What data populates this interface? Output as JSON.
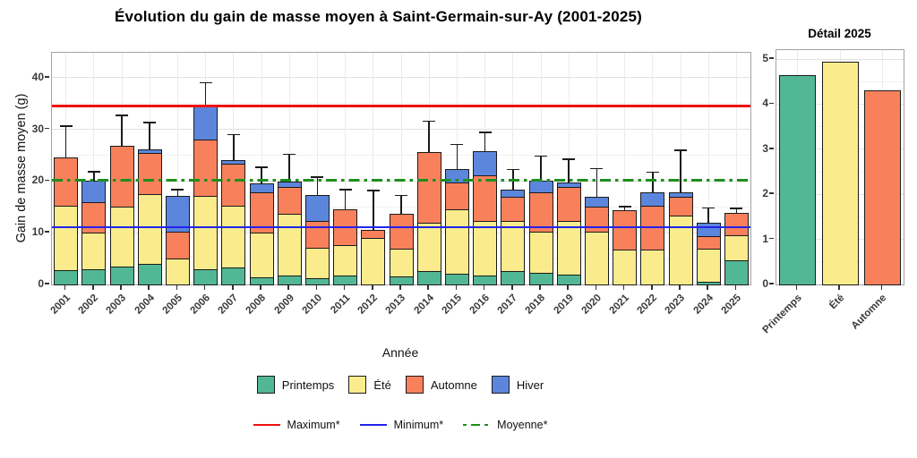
{
  "chart_data": [
    {
      "type": "bar",
      "stacked": true,
      "title": "Évolution du gain de masse moyen à Saint-Germain-sur-Ay (2001-2025)",
      "xlabel": "Année",
      "ylabel": "Gain de masse moyen (g)",
      "ylim": [
        0,
        44.8
      ],
      "yticks": [
        0,
        10,
        20,
        30,
        40
      ],
      "grid": true,
      "legend_position": "bottom",
      "categories": [
        "2001",
        "2002",
        "2003",
        "2004",
        "2005",
        "2006",
        "2007",
        "2008",
        "2009",
        "2010",
        "2011",
        "2012",
        "2013",
        "2014",
        "2015",
        "2016",
        "2017",
        "2018",
        "2019",
        "2020",
        "2021",
        "2022",
        "2023",
        "2024",
        "2025"
      ],
      "series": [
        {
          "name": "Printemps",
          "color": "#52B794",
          "values": [
            2.8,
            3.0,
            3.5,
            4.0,
            0,
            3.0,
            3.3,
            1.4,
            1.8,
            1.2,
            1.7,
            0,
            1.5,
            2.6,
            2.1,
            1.7,
            2.6,
            2.3,
            1.9,
            0,
            0,
            0,
            0,
            0.5,
            4.65
          ]
        },
        {
          "name": "Été",
          "color": "#FAEC8C",
          "values": [
            12.5,
            7.0,
            11.5,
            13.5,
            5.0,
            14.2,
            12.0,
            8.6,
            11.9,
            5.9,
            5.9,
            9.0,
            5.5,
            9.3,
            12.5,
            10.5,
            9.7,
            7.9,
            10.4,
            10.2,
            6.7,
            6.7,
            13.4,
            6.5,
            4.95
          ]
        },
        {
          "name": "Automne",
          "color": "#F8815C",
          "values": [
            9.2,
            6.0,
            11.8,
            8.0,
            5.2,
            10.9,
            8.0,
            7.9,
            5.2,
            5.1,
            7.0,
            1.5,
            6.7,
            13.7,
            5.1,
            8.9,
            4.7,
            7.6,
            6.5,
            4.9,
            7.7,
            8.6,
            3.6,
            2.3,
            4.3
          ]
        },
        {
          "name": "Hiver",
          "color": "#5C86DC",
          "values": [
            0,
            4.0,
            0,
            0.7,
            7.0,
            6.4,
            0.7,
            1.6,
            1.0,
            5.1,
            0,
            0,
            0,
            0,
            2.7,
            4.6,
            1.3,
            2.3,
            0.9,
            1.8,
            0,
            2.5,
            0.8,
            2.7,
            0
          ]
        }
      ],
      "error_bar_tops": [
        30.6,
        21.8,
        32.7,
        31.3,
        18.3,
        39.0,
        29.0,
        22.7,
        25.2,
        20.8,
        18.3,
        18.2,
        17.2,
        31.6,
        27.1,
        29.4,
        22.2,
        24.8,
        24.2,
        22.4,
        15.0,
        21.7,
        25.9,
        14.8,
        14.7
      ],
      "ref_lines": [
        {
          "label": "Maximum*",
          "value": 34.5,
          "color": "#EE1111",
          "style": "solid"
        },
        {
          "label": "Minimum*",
          "value": 11.1,
          "color": "#2222EE",
          "style": "solid"
        },
        {
          "label": "Moyenne*",
          "value": 20.2,
          "color": "#1E8E1E",
          "style": "dashdot"
        }
      ]
    },
    {
      "type": "bar",
      "stacked": false,
      "title": "Détail 2025",
      "xlabel": "",
      "ylabel": "",
      "ylim": [
        0,
        5.2
      ],
      "yticks": [
        0,
        1,
        2,
        3,
        4,
        5
      ],
      "grid": true,
      "categories": [
        "Printemps",
        "Été",
        "Automne"
      ],
      "values": [
        4.65,
        4.95,
        4.3
      ],
      "colors": [
        "#52B794",
        "#FAEC8C",
        "#F8815C"
      ]
    }
  ]
}
